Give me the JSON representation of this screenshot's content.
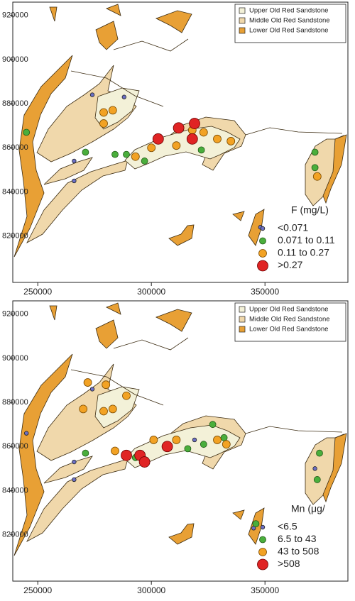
{
  "chart_data": [
    {
      "type": "scatter",
      "legend_title": "F  (mg/L)",
      "xlim": [
        239000,
        386500
      ],
      "ylim": [
        799000,
        926000
      ],
      "xticks": [
        250000,
        300000,
        350000
      ],
      "yticks": [
        820000,
        840000,
        860000,
        880000,
        900000,
        920000
      ],
      "geology_legend": [
        {
          "name": "Upper Old Red Sandstone",
          "color": "#f3f1d8"
        },
        {
          "name": "Middle Old Red Sandstone",
          "color": "#f0d8ab"
        },
        {
          "name": "Lower Old Red Sandstone",
          "color": "#e8a035"
        }
      ],
      "series": [
        {
          "name": "<0.071",
          "color": "#6b6fc4",
          "x": [
            274000,
            288000,
            266000,
            266000,
            348000
          ],
          "y": [
            884000,
            883000,
            854000,
            845000,
            824000
          ]
        },
        {
          "name": "0.071 to 0.11",
          "color": "#4aae3c",
          "x": [
            245000,
            271000,
            284000,
            289000,
            297000,
            322000,
            372000,
            372000
          ],
          "y": [
            867000,
            858000,
            857000,
            857000,
            854000,
            859000,
            858000,
            851000
          ]
        },
        {
          "name": "0.11 to 0.27",
          "color": "#f2a224",
          "x": [
            279000,
            283000,
            279000,
            293000,
            300000,
            311000,
            318000,
            323000,
            329000,
            335000,
            373000
          ],
          "y": [
            876000,
            877000,
            871000,
            856000,
            860000,
            861000,
            868000,
            867000,
            864000,
            863000,
            847000
          ]
        },
        {
          "name": ">0.27",
          "color": "#e02424",
          "x": [
            303000,
            312000,
            319000,
            318000
          ],
          "y": [
            864000,
            869000,
            871000,
            864000
          ]
        }
      ]
    },
    {
      "type": "scatter",
      "legend_title": "Mn  (μg/",
      "xlim": [
        239000,
        386500
      ],
      "ylim": [
        799000,
        926000
      ],
      "xticks": [
        250000,
        300000,
        350000
      ],
      "yticks": [
        820000,
        840000,
        860000,
        880000,
        900000,
        920000
      ],
      "geology_legend": [
        {
          "name": "Upper Old Red Sandstone",
          "color": "#f3f1d8"
        },
        {
          "name": "Middle Old Red Sandstone",
          "color": "#f0d8ab"
        },
        {
          "name": "Lower Old Red Sandstone",
          "color": "#e8a035"
        }
      ],
      "series": [
        {
          "name": "<6.5",
          "color": "#6b6fc4",
          "x": [
            274000,
            245000,
            266000,
            266000,
            319000,
            372000,
            345000
          ],
          "y": [
            886000,
            866000,
            853000,
            845000,
            863000,
            850000,
            823000
          ]
        },
        {
          "name": "6.5 to 43",
          "color": "#4aae3c",
          "x": [
            271000,
            293000,
            316000,
            327000,
            323000,
            332000,
            374000,
            373000,
            346000
          ],
          "y": [
            857000,
            855000,
            859000,
            870000,
            861000,
            864000,
            857000,
            845000,
            825000
          ]
        },
        {
          "name": "43 to 508",
          "color": "#f2a224",
          "x": [
            272000,
            280000,
            289000,
            270000,
            279000,
            283000,
            284000,
            301000,
            311000,
            329000,
            333000
          ],
          "y": [
            889000,
            888000,
            883000,
            877000,
            876000,
            877000,
            858000,
            863000,
            863000,
            863000,
            861000
          ]
        },
        {
          "name": ">508",
          "color": "#e02424",
          "x": [
            289000,
            295000,
            297000,
            307000
          ],
          "y": [
            856000,
            856000,
            853000,
            860000
          ]
        }
      ]
    }
  ]
}
